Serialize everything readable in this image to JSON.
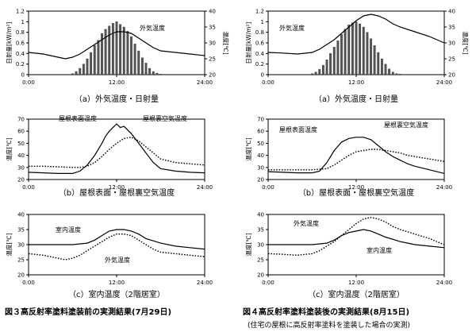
{
  "figures": {
    "left_title": "図３高反射率塗料塗装前の実測結果(7月29日)",
    "right_title": "図４高反射率塗料塗装後の実測結果(8月15日)",
    "right_subtitle": "(住宅の屋根に高反射率塗料を塗装した場合の実測)"
  },
  "chart_data": [
    {
      "id": "L-a",
      "type": "line",
      "caption": "（a）外気温度・日射量",
      "ylabel": "日射量[kW/m²]",
      "ylabel2": "温度[℃]",
      "ylim": [
        0,
        1.2
      ],
      "y2lim": [
        20,
        40
      ],
      "yticks": [
        "0",
        "0.2",
        "0.4",
        "0.6",
        "0.8",
        "1",
        "1.2"
      ],
      "y2ticks": [
        "20",
        "25",
        "30",
        "35",
        "40"
      ],
      "xticks": [
        "0:00",
        "12:00",
        "24:00"
      ],
      "bars": {
        "name": "日射量",
        "x": [
          6,
          6.5,
          7,
          7.5,
          8,
          8.5,
          9,
          9.5,
          10,
          10.5,
          11,
          11.5,
          12,
          12.5,
          13,
          13.5,
          14,
          14.5,
          15,
          15.5,
          16,
          16.5,
          17,
          17.5,
          18
        ],
        "values": [
          0.02,
          0.06,
          0.12,
          0.2,
          0.3,
          0.42,
          0.55,
          0.65,
          0.78,
          0.86,
          0.92,
          0.97,
          1.0,
          0.95,
          0.9,
          0.82,
          0.72,
          0.58,
          0.45,
          0.32,
          0.22,
          0.12,
          0.06,
          0.03,
          0.01
        ]
      },
      "series": [
        {
          "name": "外気温度",
          "axis": "y2",
          "style": "solid",
          "x": [
            0,
            2,
            4,
            5,
            6,
            7,
            8,
            9,
            10,
            11,
            12,
            13,
            14,
            15,
            16,
            17,
            18,
            20,
            22,
            24
          ],
          "values": [
            27,
            26.5,
            25.5,
            25,
            25.5,
            26.5,
            28,
            29.5,
            31,
            32.5,
            33.5,
            33.5,
            33,
            31.5,
            30,
            28.5,
            27.5,
            27,
            26.5,
            26
          ]
        }
      ],
      "annotations": [
        "外気温度"
      ]
    },
    {
      "id": "R-a",
      "type": "line",
      "caption": "（a）外気温度・日射量",
      "ylabel": "日射量[kW/m²]",
      "ylabel2": "温度[℃]",
      "ylim": [
        0,
        1.2
      ],
      "y2lim": [
        20,
        40
      ],
      "yticks": [
        "0",
        "0.2",
        "0.4",
        "0.6",
        "0.8",
        "1",
        "1.2"
      ],
      "y2ticks": [
        "20",
        "25",
        "30",
        "35",
        "40"
      ],
      "xticks": [
        "0:00",
        "12:00",
        "24:00"
      ],
      "bars": {
        "name": "日射量",
        "x": [
          6,
          6.5,
          7,
          7.5,
          8,
          8.5,
          9,
          9.5,
          10,
          10.5,
          11,
          11.5,
          12,
          12.5,
          13,
          13.5,
          14,
          14.5,
          15,
          15.5,
          16,
          16.5,
          17,
          17.5,
          18
        ],
        "values": [
          0.02,
          0.05,
          0.1,
          0.18,
          0.28,
          0.4,
          0.52,
          0.64,
          0.76,
          0.86,
          0.94,
          0.98,
          1.0,
          0.96,
          0.9,
          0.8,
          0.68,
          0.55,
          0.42,
          0.3,
          0.2,
          0.11,
          0.05,
          0.02,
          0.01
        ]
      },
      "series": [
        {
          "name": "外気温度",
          "axis": "y2",
          "style": "solid",
          "x": [
            0,
            2,
            4,
            6,
            7,
            8,
            9,
            10,
            11,
            12,
            13,
            14,
            15,
            16,
            17,
            18,
            20,
            22,
            24
          ],
          "values": [
            27,
            26.8,
            26.5,
            27,
            28,
            29.5,
            31,
            33,
            35,
            37,
            38.5,
            39,
            38.5,
            37.5,
            36,
            35,
            33.5,
            32,
            30
          ]
        }
      ],
      "annotations": [
        "外気温度"
      ]
    },
    {
      "id": "L-b",
      "type": "line",
      "caption": "（b）屋根表面・屋根裏空気温度",
      "ylabel": "温度[℃]",
      "ylim": [
        20,
        70
      ],
      "yticks": [
        "20",
        "30",
        "40",
        "50",
        "60",
        "70"
      ],
      "xticks": [
        "0:00",
        "12:00",
        "24:00"
      ],
      "series": [
        {
          "name": "屋根表面温度",
          "style": "solid",
          "x": [
            0,
            2,
            4,
            6,
            7,
            8,
            9,
            10,
            10.5,
            11,
            11.5,
            12,
            12.5,
            13,
            13.5,
            14,
            15,
            16,
            17,
            18,
            20,
            22,
            24
          ],
          "values": [
            26,
            25.5,
            25,
            25,
            27,
            32,
            40,
            50,
            56,
            60,
            63,
            66,
            63,
            64,
            61,
            58,
            50,
            42,
            34,
            29,
            27,
            26,
            25.5
          ]
        },
        {
          "name": "屋根裏空気温度",
          "style": "dotted",
          "x": [
            0,
            2,
            4,
            6,
            7,
            8,
            9,
            10,
            11,
            12,
            13,
            14,
            15,
            16,
            17,
            18,
            20,
            22,
            24
          ],
          "values": [
            31,
            31,
            30.5,
            30,
            30,
            31,
            34,
            39,
            45,
            50,
            54,
            55,
            52,
            47,
            42,
            37,
            34,
            33,
            32
          ]
        }
      ],
      "annotations": [
        "屋根表面温度",
        "屋根裏空気温度"
      ]
    },
    {
      "id": "R-b",
      "type": "line",
      "caption": "（b）屋根表面・屋根裏空気温度",
      "ylabel": "温度[℃]",
      "ylim": [
        20,
        70
      ],
      "yticks": [
        "20",
        "30",
        "40",
        "50",
        "60",
        "70"
      ],
      "xticks": [
        "0:00",
        "12:00",
        "24:00"
      ],
      "series": [
        {
          "name": "屋根表面温度",
          "style": "solid",
          "x": [
            0,
            2,
            4,
            6,
            7,
            8,
            9,
            10,
            11,
            12,
            13,
            14,
            15,
            16,
            17,
            18,
            19,
            20,
            22,
            24
          ],
          "values": [
            26.5,
            26,
            25.5,
            25.5,
            27,
            34,
            44,
            51,
            54,
            55,
            55,
            53,
            48,
            43,
            39,
            36,
            33,
            31,
            28,
            25
          ]
        },
        {
          "name": "屋根裏空気温度",
          "style": "dotted",
          "x": [
            0,
            2,
            4,
            6,
            8,
            9,
            10,
            11,
            12,
            13,
            14,
            15,
            16,
            17,
            18,
            19,
            20,
            22,
            24
          ],
          "values": [
            28,
            28,
            28,
            28,
            29,
            32,
            36,
            40,
            43,
            44,
            45,
            45,
            44,
            43,
            42,
            40,
            39,
            37,
            35
          ]
        }
      ],
      "annotations": [
        "屋根表面温度",
        "屋根裏空気温度"
      ]
    },
    {
      "id": "L-c",
      "type": "line",
      "caption": "（c）室内温度（2階居室）",
      "ylabel": "温度[℃]",
      "ylim": [
        20,
        40
      ],
      "yticks": [
        "20",
        "25",
        "30",
        "35",
        "40"
      ],
      "xticks": [
        "0:00",
        "12:00",
        "24:00"
      ],
      "series": [
        {
          "name": "室内温度",
          "style": "solid",
          "x": [
            0,
            2,
            4,
            6,
            8,
            9,
            10,
            11,
            12,
            13,
            14,
            15,
            16,
            18,
            20,
            22,
            24
          ],
          "values": [
            30,
            30,
            30,
            30,
            30.5,
            31.5,
            33,
            34.5,
            35,
            35,
            34.5,
            33.5,
            32,
            30.5,
            29.5,
            29,
            28.5
          ]
        },
        {
          "name": "外気温度",
          "style": "dotted",
          "x": [
            0,
            2,
            4,
            5,
            6,
            7,
            8,
            9,
            10,
            11,
            12,
            13,
            14,
            15,
            16,
            17,
            18,
            20,
            22,
            24
          ],
          "values": [
            27,
            26.5,
            25.5,
            25,
            25.5,
            26.5,
            28,
            29.5,
            31,
            32.5,
            33.5,
            33.5,
            33,
            31.5,
            30,
            28.5,
            27.5,
            27,
            26.5,
            26
          ]
        }
      ],
      "annotations": [
        "室内温度",
        "外気温度"
      ]
    },
    {
      "id": "R-c",
      "type": "line",
      "caption": "（c）室内温度（2階居室）",
      "ylabel": "温度[℃]",
      "ylim": [
        20,
        40
      ],
      "yticks": [
        "20",
        "25",
        "30",
        "35",
        "40"
      ],
      "xticks": [
        "0:00",
        "12:00",
        "24:00"
      ],
      "series": [
        {
          "name": "外気温度",
          "style": "dotted",
          "x": [
            0,
            2,
            4,
            6,
            7,
            8,
            9,
            10,
            11,
            12,
            13,
            14,
            15,
            16,
            17,
            18,
            20,
            22,
            24
          ],
          "values": [
            27,
            26.8,
            26.5,
            27,
            28,
            29.5,
            31,
            33,
            35,
            37,
            38.5,
            39,
            38.5,
            37.5,
            36,
            35,
            33.5,
            32,
            30
          ]
        },
        {
          "name": "室内温度",
          "style": "solid",
          "x": [
            0,
            2,
            4,
            6,
            8,
            9,
            10,
            11,
            12,
            13,
            14,
            15,
            16,
            18,
            20,
            22,
            24
          ],
          "values": [
            30,
            30,
            30,
            30,
            30.5,
            31.5,
            33,
            34,
            34.5,
            35,
            34.5,
            33.5,
            32.5,
            31,
            30,
            29.5,
            29
          ]
        }
      ],
      "annotations": [
        "外気温度",
        "室内温度"
      ]
    }
  ]
}
